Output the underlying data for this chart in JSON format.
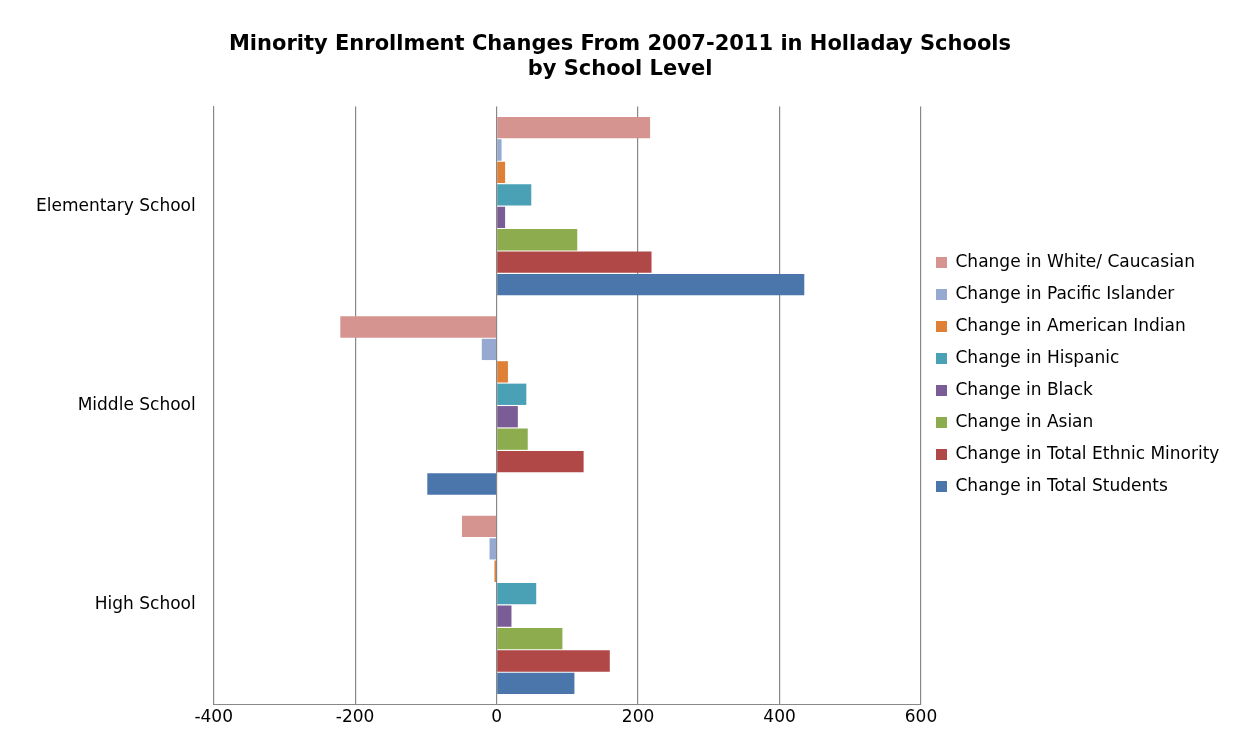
{
  "chart_data": {
    "type": "bar",
    "orientation": "horizontal",
    "title": "Minority Enrollment Changes From 2007-2011 in Holladay Schools\nby School Level",
    "categories": [
      "Elementary School",
      "Middle School",
      "High School"
    ],
    "series": [
      {
        "name": "Change in White/ Caucasian",
        "color": "#d69491",
        "values": [
          217,
          -221,
          -49
        ]
      },
      {
        "name": "Change in Pacific Islander",
        "color": "#95a9d1",
        "values": [
          7,
          -21,
          -10
        ]
      },
      {
        "name": "Change in American Indian",
        "color": "#e07f36",
        "values": [
          12,
          16,
          -3
        ]
      },
      {
        "name": "Change in Hispanic",
        "color": "#4aa0b5",
        "values": [
          49,
          42,
          56
        ]
      },
      {
        "name": "Change in Black",
        "color": "#7a5c96",
        "values": [
          12,
          30,
          21
        ]
      },
      {
        "name": "Change in Asian",
        "color": "#8cac4d",
        "values": [
          114,
          44,
          93
        ]
      },
      {
        "name": "Change in Total Ethnic Minority",
        "color": "#b04848",
        "values": [
          219,
          123,
          160
        ]
      },
      {
        "name": "Change in Total Students",
        "color": "#4a76ac",
        "values": [
          435,
          -98,
          110
        ]
      }
    ],
    "xlim": [
      -400,
      600
    ],
    "xticks": [
      -400,
      -200,
      0,
      200,
      400,
      600
    ],
    "grid": "x",
    "legend": "right"
  }
}
